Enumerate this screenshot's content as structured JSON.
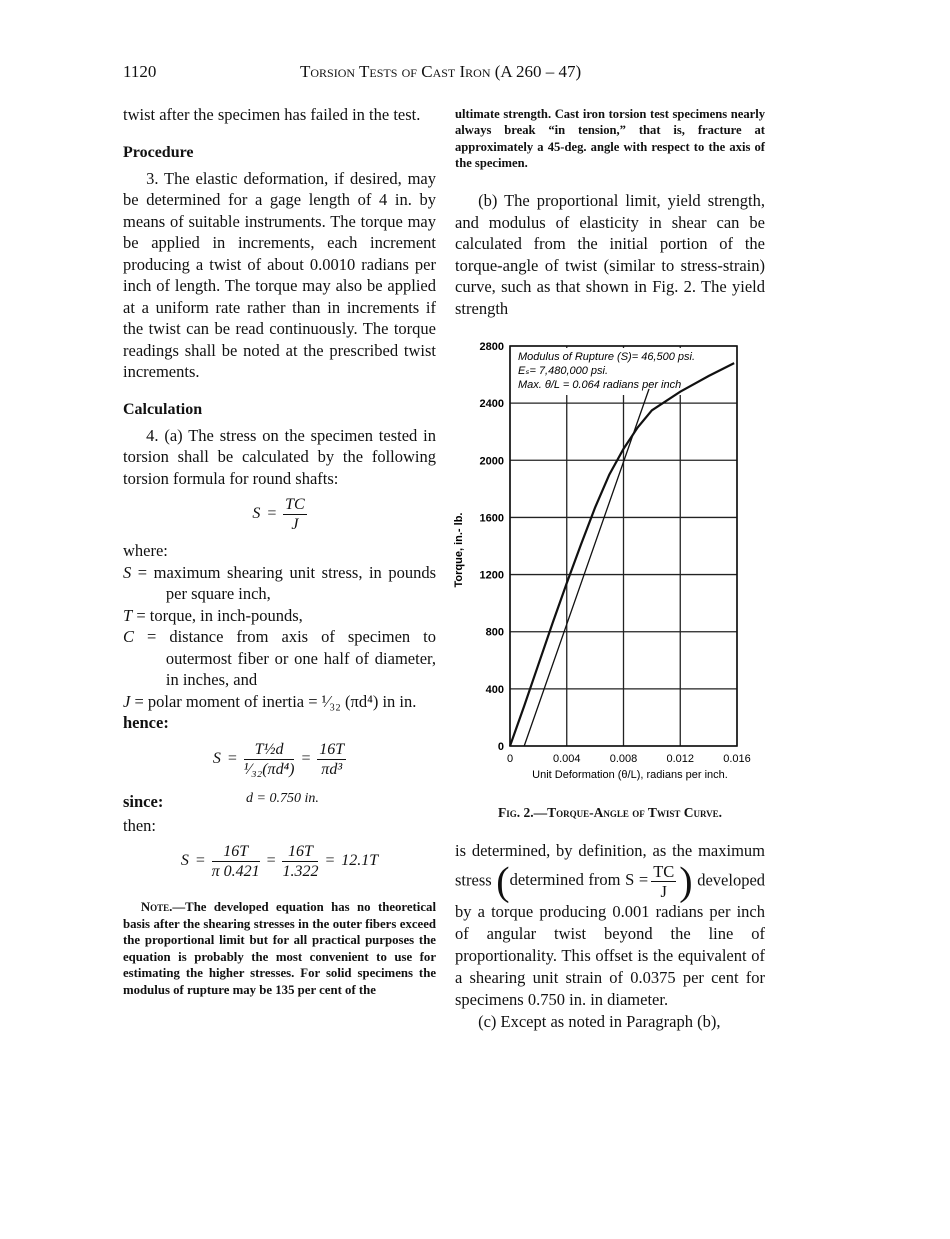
{
  "header": {
    "page_number": "1120",
    "title": "Torsion Tests of Cast Iron (A 260 – 47)"
  },
  "left": {
    "intro": "twist after the specimen has failed in the test.",
    "procedure_heading": "Procedure",
    "procedure": "3. The elastic deformation, if desired, may be determined for a gage length of 4 in. by means of suitable instruments. The torque may be applied in increments, each increment producing a twist of about 0.0010 radians per inch of length. The torque may also be applied at a uniform rate rather than in increments if the twist can be read continuously. The torque readings shall be noted at the prescribed twist increments.",
    "calculation_heading": "Calculation",
    "calculation": "4. (a) The stress on the specimen tested in torsion shall be calculated by the following torsion formula for round shafts:",
    "formula_1": [
      "S",
      "=",
      {
        "num": "TC",
        "den": "J"
      }
    ],
    "where": "where:",
    "definitions": [
      {
        "symbol": "S",
        "text": " = maximum shearing unit stress, in pounds per square inch,"
      },
      {
        "symbol": "T",
        "text": " = torque, in inch-pounds,"
      },
      {
        "symbol": "C",
        "text": " = distance from axis of specimen to outermost fiber or one half of diameter, in inches, and"
      },
      {
        "symbol": "J",
        "text": " = polar moment of inertia = ¹⁄₃₂ (πd⁴) in in."
      }
    ],
    "hence": "hence:",
    "formula_2": [
      "S",
      "=",
      {
        "num": "T½d",
        "den": "¹⁄₃₂(πd⁴)"
      },
      "=",
      {
        "num": "16T",
        "den": "πd³"
      }
    ],
    "since": "since:",
    "formula_3": [
      "d = 0.750 in."
    ],
    "then": "then:",
    "formula_4": [
      "S",
      "=",
      {
        "num": "16T",
        "den": "π 0.421"
      },
      "=",
      {
        "num": "16T",
        "den": "1.322"
      },
      "=",
      "12.1T"
    ],
    "note_label": "Note.—",
    "note": "The developed equation has no theoretical basis after the shearing stresses in the outer fibers exceed the proportional limit but for all practical purposes the equation is probably the most convenient to use for estimating the higher stresses. For solid specimens the modulus of rupture may be 135 per cent of the"
  },
  "right": {
    "intro": "ultimate strength. Cast iron torsion test specimens nearly always break “in tension,” that is, fracture at approximately a 45-deg. angle with respect to the axis of the specimen.",
    "paragraph_b": "(b) The proportional limit, yield strength, and modulus of elasticity in shear can be calculated from the initial portion of the torque-angle of twist (similar to stress-strain) curve, such as that shown in Fig. 2. The yield strength",
    "figure": {
      "type": "line",
      "annotations": [
        "Modulus of Rupture (S)= 46,500 psi.",
        "Eₛ= 7,480,000 psi.",
        "Max. θ/L = 0.064 radians per inch"
      ],
      "xlabel": "Unit Deformation (θ/L), radians per inch.",
      "ylabel": "Torque, in.- lb.",
      "xlim": [
        0,
        0.016
      ],
      "ylim": [
        0,
        2800
      ],
      "xticks": [
        0,
        0.004,
        0.008,
        0.012,
        0.016
      ],
      "yticks": [
        0,
        400,
        800,
        1200,
        1600,
        2000,
        2400,
        2800
      ],
      "grid": true,
      "series": [
        {
          "color": "#111111",
          "x": [
            0,
            0.001,
            0.002,
            0.003,
            0.004,
            0.005,
            0.006,
            0.007,
            0.008,
            0.009,
            0.01,
            0.012,
            0.014,
            0.0158
          ],
          "values": [
            0,
            280,
            570,
            860,
            1140,
            1410,
            1670,
            1900,
            2080,
            2230,
            2350,
            2480,
            2590,
            2680
          ]
        },
        {
          "color": "#111111",
          "x": [
            0.001,
            0.0098
          ],
          "values": [
            0,
            2500
          ]
        }
      ],
      "caption": "Fig. 2.—Torque-Angle of Twist Curve."
    },
    "paragraph_b_cont": {
      "before": "is determined, by definition, as the maximum stress",
      "formula": [
        "determined from S =",
        {
          "num": "TC",
          "den": "J"
        }
      ],
      "after": "developed by a torque producing 0.001 radians per inch of angular twist beyond the line of proportionality. This offset is the equivalent of a shearing unit strain of 0.0375 per cent for specimens 0.750 in. in diameter."
    },
    "paragraph_c": "(c) Except as noted in Paragraph (b),"
  }
}
